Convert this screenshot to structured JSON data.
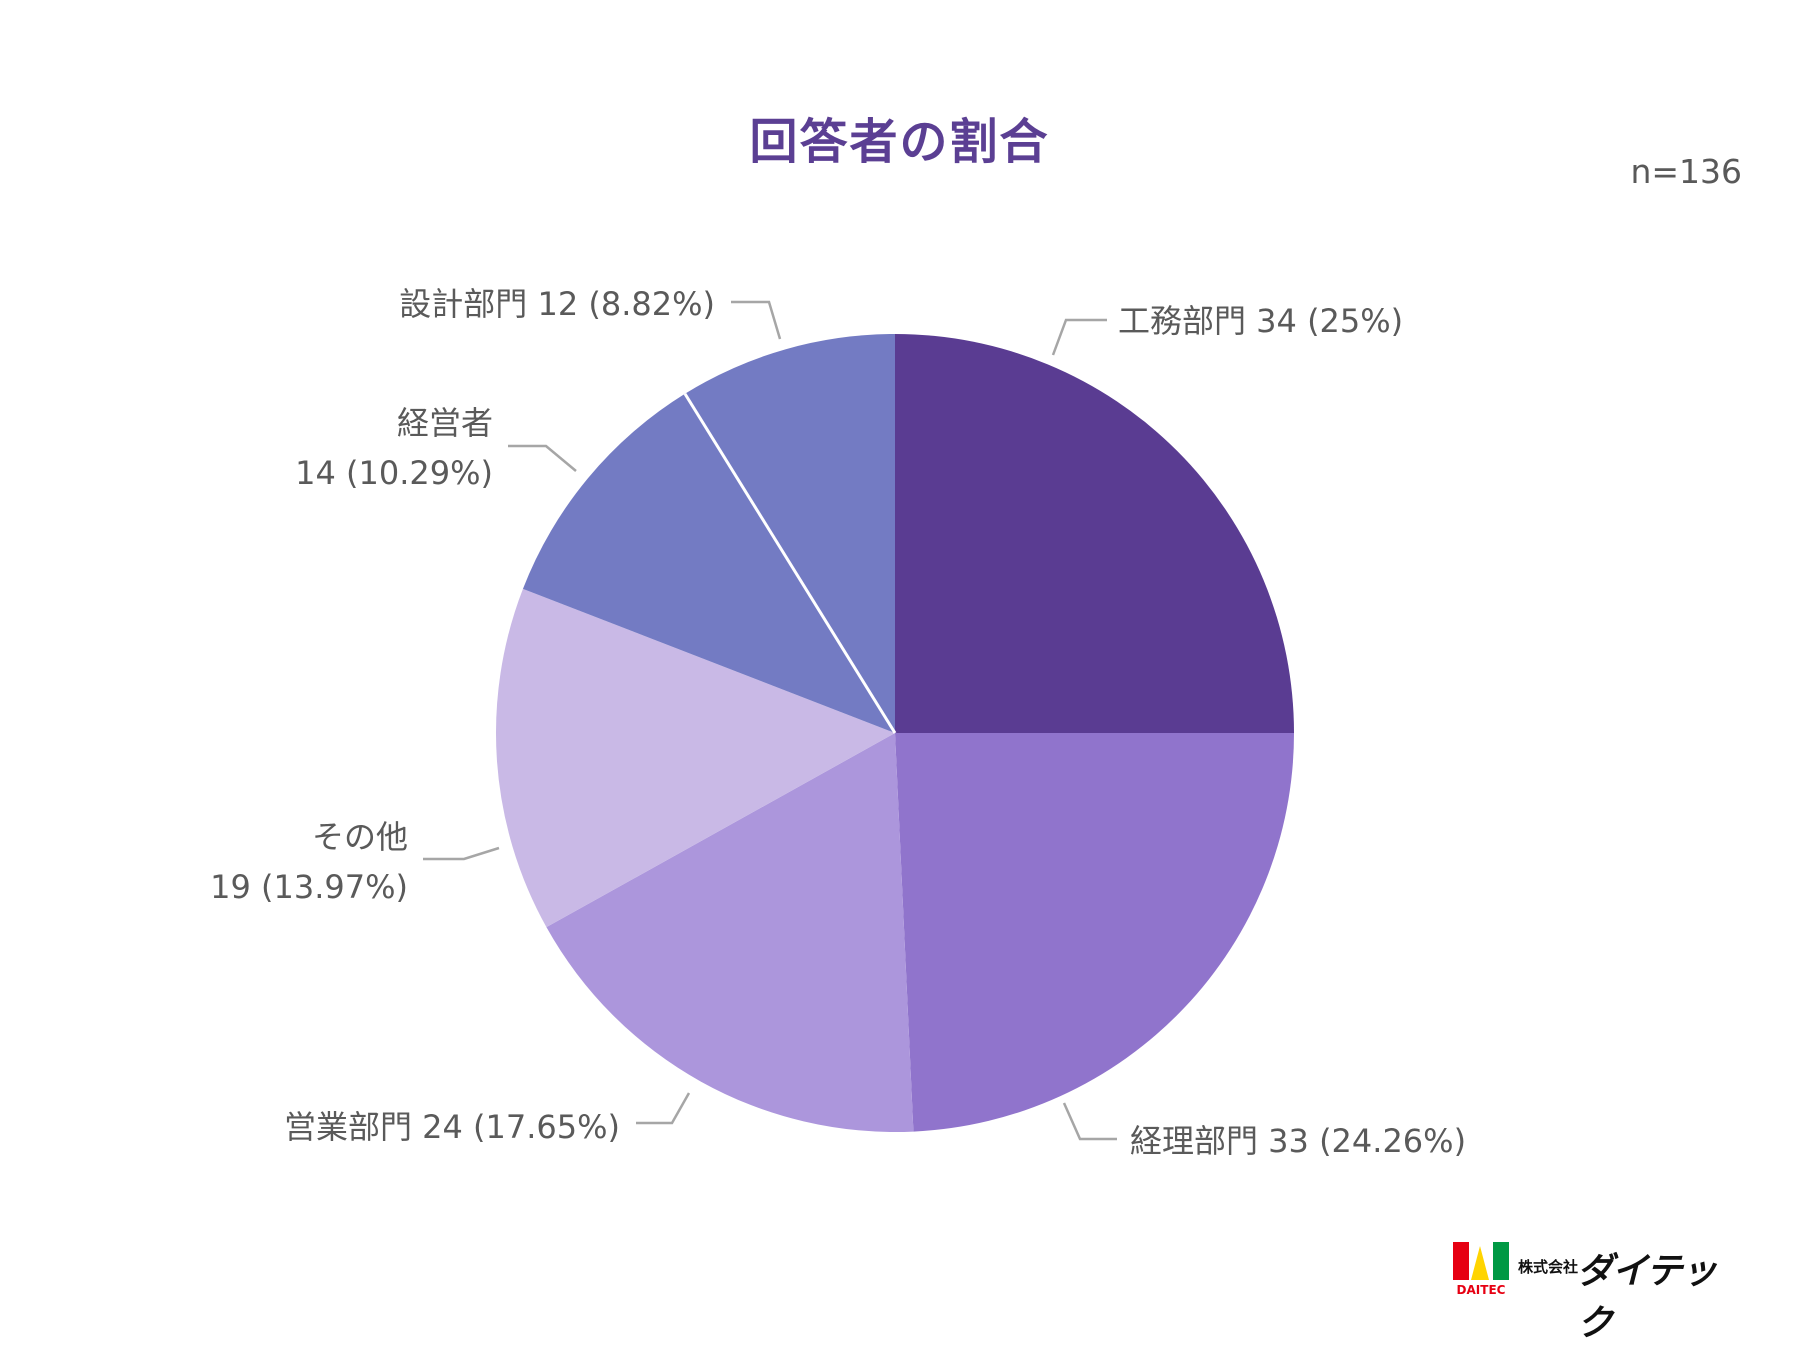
{
  "title": "回答者の割合",
  "sample_size": "n=136",
  "chart_data": {
    "type": "pie",
    "title": "回答者の割合",
    "start": "12 o'clock, clockwise",
    "slices": [
      {
        "label": "工務部門",
        "count": 34,
        "percent": "25%",
        "color": "#5a3c92"
      },
      {
        "label": "経理部門",
        "count": 33,
        "percent": "24.26%",
        "color": "#9074cc"
      },
      {
        "label": "営業部門",
        "count": 24,
        "percent": "17.65%",
        "color": "#ac96dc"
      },
      {
        "label": "その他",
        "count": 19,
        "percent": "13.97%",
        "color": "#c9b9e6"
      },
      {
        "label": "経営者",
        "count": 14,
        "percent": "10.29%",
        "color": "#737bc3"
      },
      {
        "label": "設計部門",
        "count": 12,
        "percent": "8.82%",
        "color": "#737bc3"
      }
    ]
  },
  "labels": {
    "s0": "工務部門 34 (25%)",
    "s1": "経理部門 33 (24.26%)",
    "s2": "営業部門 24 (17.65%)",
    "s3_name": "その他",
    "s3_value": "19 (13.97%)",
    "s4_name": "経営者",
    "s4_value": "14 (10.29%)",
    "s5": "設計部門 12 (8.82%)"
  },
  "logo": {
    "mark_text": "DAITEC",
    "corp": "株式会社",
    "brand": "ダイテック",
    "colors": [
      "#e60012",
      "#ffd400",
      "#009944"
    ]
  }
}
